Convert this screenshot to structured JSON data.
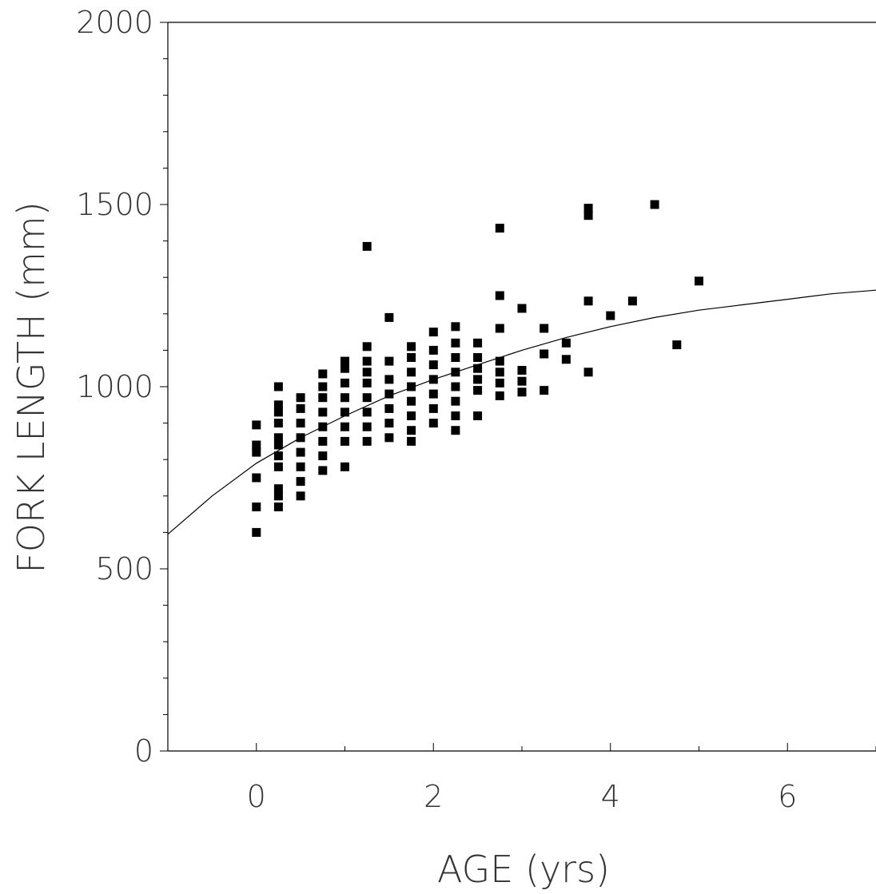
{
  "chart_data": {
    "type": "scatter",
    "title": "",
    "xlabel": "AGE (yrs)",
    "ylabel": "FORK LENGTH (mm)",
    "xlim": [
      -1,
      7
    ],
    "ylim": [
      0,
      2000
    ],
    "x_ticks": [
      0,
      2,
      4,
      6
    ],
    "y_ticks": [
      0,
      500,
      1000,
      1500,
      2000
    ],
    "x_minor_step": 1,
    "y_minor_step": 100,
    "grid": false,
    "legend": "none",
    "point_marker": "square",
    "point_color": "#000000",
    "curve_color": "#000000",
    "points": [
      {
        "x": 0,
        "y": 600
      },
      {
        "x": 0,
        "y": 670
      },
      {
        "x": 0,
        "y": 750
      },
      {
        "x": 0,
        "y": 820
      },
      {
        "x": 0,
        "y": 840
      },
      {
        "x": 0,
        "y": 895
      },
      {
        "x": 0.25,
        "y": 670
      },
      {
        "x": 0.25,
        "y": 700
      },
      {
        "x": 0.25,
        "y": 720
      },
      {
        "x": 0.25,
        "y": 780
      },
      {
        "x": 0.25,
        "y": 810
      },
      {
        "x": 0.25,
        "y": 840
      },
      {
        "x": 0.25,
        "y": 860
      },
      {
        "x": 0.25,
        "y": 900
      },
      {
        "x": 0.25,
        "y": 930
      },
      {
        "x": 0.25,
        "y": 950
      },
      {
        "x": 0.25,
        "y": 1000
      },
      {
        "x": 0.5,
        "y": 700
      },
      {
        "x": 0.5,
        "y": 740
      },
      {
        "x": 0.5,
        "y": 780
      },
      {
        "x": 0.5,
        "y": 820
      },
      {
        "x": 0.5,
        "y": 860
      },
      {
        "x": 0.5,
        "y": 900
      },
      {
        "x": 0.5,
        "y": 940
      },
      {
        "x": 0.5,
        "y": 970
      },
      {
        "x": 0.75,
        "y": 770
      },
      {
        "x": 0.75,
        "y": 810
      },
      {
        "x": 0.75,
        "y": 850
      },
      {
        "x": 0.75,
        "y": 890
      },
      {
        "x": 0.75,
        "y": 930
      },
      {
        "x": 0.75,
        "y": 970
      },
      {
        "x": 0.75,
        "y": 1000
      },
      {
        "x": 0.75,
        "y": 1035
      },
      {
        "x": 1.0,
        "y": 780
      },
      {
        "x": 1.0,
        "y": 850
      },
      {
        "x": 1.0,
        "y": 890
      },
      {
        "x": 1.0,
        "y": 930
      },
      {
        "x": 1.0,
        "y": 970
      },
      {
        "x": 1.0,
        "y": 1010
      },
      {
        "x": 1.0,
        "y": 1050
      },
      {
        "x": 1.0,
        "y": 1070
      },
      {
        "x": 1.25,
        "y": 850
      },
      {
        "x": 1.25,
        "y": 890
      },
      {
        "x": 1.25,
        "y": 930
      },
      {
        "x": 1.25,
        "y": 970
      },
      {
        "x": 1.25,
        "y": 1010
      },
      {
        "x": 1.25,
        "y": 1040
      },
      {
        "x": 1.25,
        "y": 1070
      },
      {
        "x": 1.25,
        "y": 1110
      },
      {
        "x": 1.25,
        "y": 1385
      },
      {
        "x": 1.5,
        "y": 860
      },
      {
        "x": 1.5,
        "y": 900
      },
      {
        "x": 1.5,
        "y": 940
      },
      {
        "x": 1.5,
        "y": 980
      },
      {
        "x": 1.5,
        "y": 1020
      },
      {
        "x": 1.5,
        "y": 1070
      },
      {
        "x": 1.5,
        "y": 1190
      },
      {
        "x": 1.75,
        "y": 850
      },
      {
        "x": 1.75,
        "y": 880
      },
      {
        "x": 1.75,
        "y": 920
      },
      {
        "x": 1.75,
        "y": 960
      },
      {
        "x": 1.75,
        "y": 1000
      },
      {
        "x": 1.75,
        "y": 1040
      },
      {
        "x": 1.75,
        "y": 1080
      },
      {
        "x": 1.75,
        "y": 1110
      },
      {
        "x": 2.0,
        "y": 900
      },
      {
        "x": 2.0,
        "y": 940
      },
      {
        "x": 2.0,
        "y": 980
      },
      {
        "x": 2.0,
        "y": 1020
      },
      {
        "x": 2.0,
        "y": 1060
      },
      {
        "x": 2.0,
        "y": 1100
      },
      {
        "x": 2.0,
        "y": 1150
      },
      {
        "x": 2.25,
        "y": 880
      },
      {
        "x": 2.25,
        "y": 920
      },
      {
        "x": 2.25,
        "y": 960
      },
      {
        "x": 2.25,
        "y": 1000
      },
      {
        "x": 2.25,
        "y": 1040
      },
      {
        "x": 2.25,
        "y": 1080
      },
      {
        "x": 2.25,
        "y": 1120
      },
      {
        "x": 2.25,
        "y": 1165
      },
      {
        "x": 2.5,
        "y": 920
      },
      {
        "x": 2.5,
        "y": 990
      },
      {
        "x": 2.5,
        "y": 1020
      },
      {
        "x": 2.5,
        "y": 1050
      },
      {
        "x": 2.5,
        "y": 1080
      },
      {
        "x": 2.5,
        "y": 1120
      },
      {
        "x": 2.75,
        "y": 975
      },
      {
        "x": 2.75,
        "y": 1010
      },
      {
        "x": 2.75,
        "y": 1040
      },
      {
        "x": 2.75,
        "y": 1070
      },
      {
        "x": 2.75,
        "y": 1160
      },
      {
        "x": 2.75,
        "y": 1250
      },
      {
        "x": 2.75,
        "y": 1435
      },
      {
        "x": 3.0,
        "y": 985
      },
      {
        "x": 3.0,
        "y": 1015
      },
      {
        "x": 3.0,
        "y": 1045
      },
      {
        "x": 3.0,
        "y": 1215
      },
      {
        "x": 3.25,
        "y": 990
      },
      {
        "x": 3.25,
        "y": 1090
      },
      {
        "x": 3.25,
        "y": 1160
      },
      {
        "x": 3.5,
        "y": 1075
      },
      {
        "x": 3.5,
        "y": 1120
      },
      {
        "x": 3.75,
        "y": 1040
      },
      {
        "x": 3.75,
        "y": 1235
      },
      {
        "x": 3.75,
        "y": 1470
      },
      {
        "x": 3.75,
        "y": 1490
      },
      {
        "x": 4.0,
        "y": 1195
      },
      {
        "x": 4.25,
        "y": 1235
      },
      {
        "x": 4.5,
        "y": 1500
      },
      {
        "x": 4.75,
        "y": 1115
      },
      {
        "x": 5.0,
        "y": 1290
      }
    ],
    "curve": {
      "name": "",
      "x": [
        -1,
        -0.5,
        0,
        0.5,
        1,
        1.5,
        2,
        2.5,
        3,
        3.5,
        4,
        4.5,
        5,
        5.5,
        6,
        6.5,
        7
      ],
      "y": [
        595,
        700,
        790,
        860,
        920,
        975,
        1020,
        1060,
        1100,
        1135,
        1165,
        1190,
        1210,
        1225,
        1240,
        1255,
        1265
      ]
    }
  }
}
